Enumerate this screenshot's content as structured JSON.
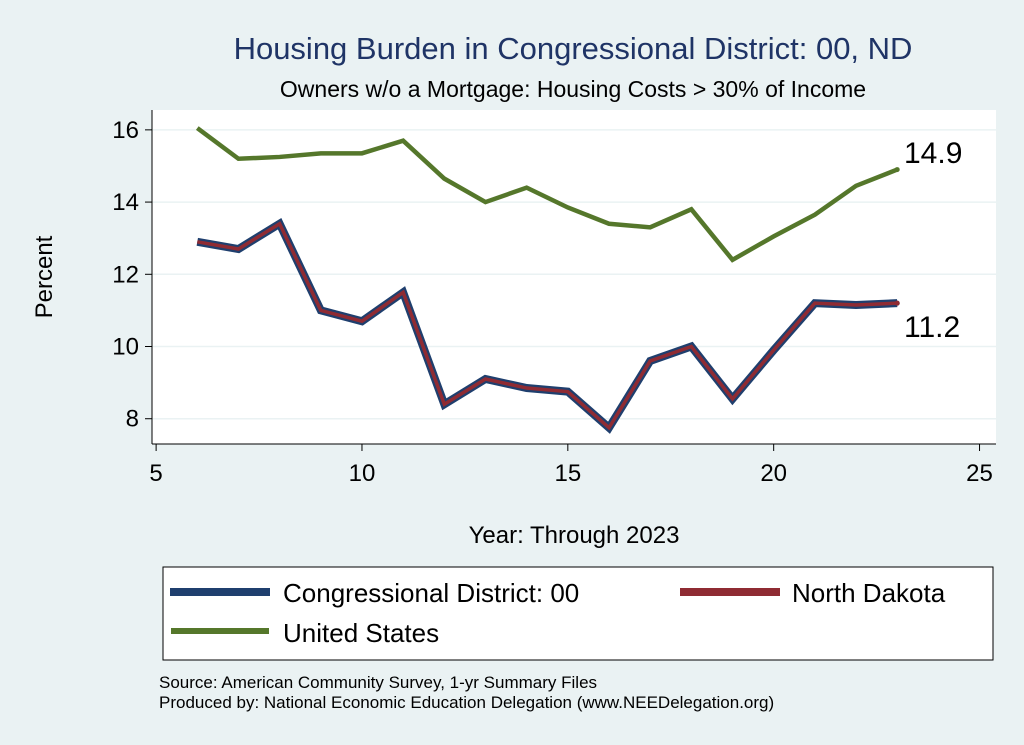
{
  "chart_data": {
    "type": "line",
    "title": "Housing Burden in Congressional District:  00, ND",
    "subtitle": "Owners w/o a Mortgage: Housing Costs > 30% of Income",
    "xlabel": "Year: Through 2023",
    "ylabel": "Percent",
    "xlim": [
      4.9,
      25.4
    ],
    "ylim": [
      7.3,
      16.55
    ],
    "xticks": [
      5,
      10,
      15,
      20,
      25
    ],
    "yticks": [
      8,
      10,
      12,
      14,
      16
    ],
    "grid": true,
    "legend_position": "bottom",
    "x": [
      6,
      7,
      8,
      9,
      10,
      11,
      12,
      13,
      14,
      15,
      16,
      17,
      18,
      19,
      20,
      21,
      22,
      23
    ],
    "series": [
      {
        "name": "Congressional District:  00",
        "color": "#1f3f6e",
        "values": [
          12.9,
          12.7,
          13.4,
          11.0,
          10.7,
          11.5,
          8.4,
          9.1,
          8.85,
          8.75,
          7.75,
          9.6,
          10.0,
          8.55,
          9.9,
          11.2,
          11.15,
          11.2
        ]
      },
      {
        "name": "North Dakota",
        "color": "#8f2b33",
        "values": [
          12.9,
          12.7,
          13.4,
          11.0,
          10.7,
          11.5,
          8.4,
          9.1,
          8.85,
          8.75,
          7.75,
          9.6,
          10.0,
          8.55,
          9.9,
          11.2,
          11.15,
          11.2
        ]
      },
      {
        "name": "United States",
        "color": "#55772b",
        "values": [
          16.05,
          15.2,
          15.25,
          15.35,
          15.35,
          15.7,
          14.65,
          14.0,
          14.4,
          13.85,
          13.4,
          13.3,
          13.8,
          12.4,
          13.05,
          13.65,
          14.45,
          14.9
        ]
      }
    ],
    "end_labels": {
      "united_states": "14.9",
      "district": "11.2"
    }
  },
  "footer": {
    "source": "Source: American Community Survey, 1-yr Summary Files",
    "produced": "Produced by: National Economic Education Delegation (www.NEEDelegation.org)"
  }
}
